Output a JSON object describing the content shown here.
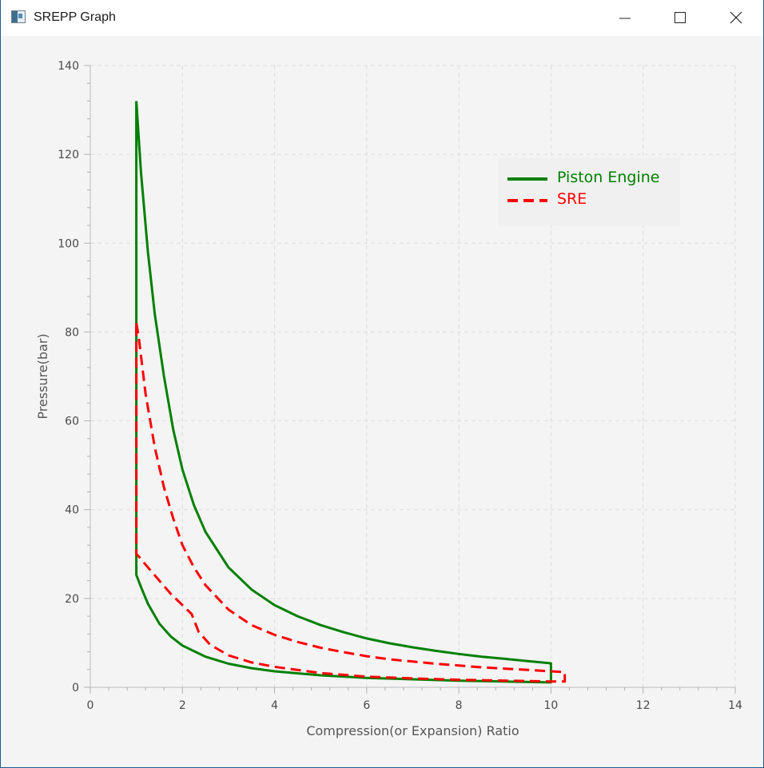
{
  "window": {
    "title": "SREPP Graph"
  },
  "colors": {
    "piston": "#008000",
    "sre": "#ff0000"
  },
  "chart_data": {
    "type": "line",
    "title": "",
    "xlabel": "Compression(or Expansion) Ratio",
    "ylabel": "Pressure(bar)",
    "xlim": [
      0,
      14
    ],
    "ylim": [
      0,
      140
    ],
    "xticks": [
      "0",
      "2",
      "4",
      "6",
      "8",
      "10",
      "12",
      "14"
    ],
    "yticks": [
      "0",
      "20",
      "40",
      "60",
      "80",
      "100",
      "120",
      "140"
    ],
    "grid": true,
    "legend_position": "top-right",
    "series": [
      {
        "name": "Piston Engine",
        "color": "#008000",
        "style": "solid",
        "points": [
          [
            1.0,
            132
          ],
          [
            1.1,
            116
          ],
          [
            1.25,
            98
          ],
          [
            1.4,
            84
          ],
          [
            1.6,
            70
          ],
          [
            1.8,
            58
          ],
          [
            2.0,
            49
          ],
          [
            2.25,
            41
          ],
          [
            2.5,
            35
          ],
          [
            3.0,
            27
          ],
          [
            3.5,
            22
          ],
          [
            4.0,
            18.5
          ],
          [
            4.5,
            16
          ],
          [
            5.0,
            14
          ],
          [
            5.5,
            12.4
          ],
          [
            6.0,
            11
          ],
          [
            6.5,
            9.9
          ],
          [
            7.0,
            9
          ],
          [
            7.5,
            8.2
          ],
          [
            8.0,
            7.5
          ],
          [
            8.5,
            6.9
          ],
          [
            9.0,
            6.4
          ],
          [
            9.5,
            5.9
          ],
          [
            10.0,
            5.4
          ],
          [
            10.0,
            1.1
          ],
          [
            9.0,
            1.3
          ],
          [
            8.0,
            1.5
          ],
          [
            7.0,
            1.8
          ],
          [
            6.0,
            2.1
          ],
          [
            5.0,
            2.7
          ],
          [
            4.0,
            3.6
          ],
          [
            3.5,
            4.3
          ],
          [
            3.0,
            5.3
          ],
          [
            2.5,
            6.9
          ],
          [
            2.0,
            9.4
          ],
          [
            1.75,
            11.4
          ],
          [
            1.5,
            14.3
          ],
          [
            1.25,
            18.8
          ],
          [
            1.1,
            22.6
          ],
          [
            1.0,
            25.3
          ],
          [
            1.0,
            132
          ]
        ]
      },
      {
        "name": "SRE",
        "color": "#ff0000",
        "style": "dashed",
        "points": [
          [
            1.0,
            82
          ],
          [
            1.05,
            79
          ],
          [
            1.2,
            66
          ],
          [
            1.4,
            54
          ],
          [
            1.6,
            45
          ],
          [
            1.8,
            38
          ],
          [
            2.0,
            32
          ],
          [
            2.25,
            27
          ],
          [
            2.5,
            23
          ],
          [
            3.0,
            17.5
          ],
          [
            3.5,
            14
          ],
          [
            4.0,
            11.8
          ],
          [
            4.5,
            10.2
          ],
          [
            5.0,
            8.9
          ],
          [
            5.5,
            7.9
          ],
          [
            6.0,
            7.0
          ],
          [
            6.5,
            6.3
          ],
          [
            7.0,
            5.8
          ],
          [
            7.5,
            5.3
          ],
          [
            8.0,
            4.9
          ],
          [
            8.5,
            4.5
          ],
          [
            9.0,
            4.2
          ],
          [
            9.5,
            3.9
          ],
          [
            10.0,
            3.6
          ],
          [
            10.3,
            3.4
          ],
          [
            10.3,
            1.3
          ],
          [
            10.0,
            1.3
          ],
          [
            9.0,
            1.5
          ],
          [
            8.0,
            1.7
          ],
          [
            7.0,
            2.0
          ],
          [
            6.0,
            2.4
          ],
          [
            5.0,
            3.2
          ],
          [
            4.0,
            4.6
          ],
          [
            3.5,
            5.6
          ],
          [
            3.0,
            7.2
          ],
          [
            2.6,
            9.6
          ],
          [
            2.35,
            12.5
          ],
          [
            2.2,
            16.5
          ],
          [
            2.0,
            18.5
          ],
          [
            1.75,
            21
          ],
          [
            1.5,
            24
          ],
          [
            1.25,
            27
          ],
          [
            1.05,
            29.5
          ],
          [
            1.0,
            30
          ],
          [
            1.0,
            82
          ]
        ]
      }
    ]
  }
}
